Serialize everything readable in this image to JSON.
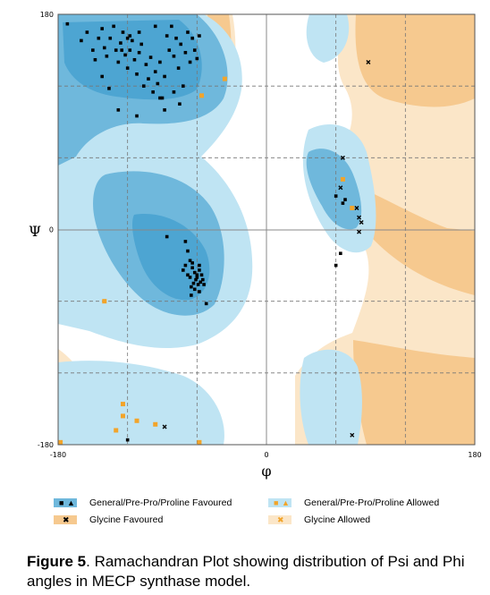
{
  "chart_data": {
    "type": "scatter",
    "title": "",
    "xlabel": "φ",
    "ylabel": "Ψ",
    "xlim": [
      -180,
      180
    ],
    "ylim": [
      -180,
      180
    ],
    "x_ticks": [
      "-180",
      "0",
      "180"
    ],
    "y_ticks": [
      "180",
      "0",
      "-180"
    ],
    "grid": true,
    "grid_style": "dashed, every 60 degrees",
    "colors": {
      "general_favoured": "#6fb8dc",
      "general_allowed": "#bfe4f3",
      "glycine_favoured": "#f6c98f",
      "glycine_allowed": "#fbe6c8",
      "marker_general": "#000000",
      "marker_allowed": "#f2a42a"
    },
    "series": [
      {
        "name": "General/Pre-Pro/Proline Favoured",
        "marker": "square",
        "points": [
          [
            -172,
            172
          ],
          [
            -160,
            158
          ],
          [
            -155,
            165
          ],
          [
            -150,
            150
          ],
          [
            -148,
            142
          ],
          [
            -145,
            160
          ],
          [
            -142,
            168
          ],
          [
            -140,
            152
          ],
          [
            -138,
            145
          ],
          [
            -135,
            160
          ],
          [
            -132,
            170
          ],
          [
            -130,
            150
          ],
          [
            -128,
            140
          ],
          [
            -126,
            156
          ],
          [
            -124,
            165
          ],
          [
            -122,
            146
          ],
          [
            -120,
            135
          ],
          [
            -118,
            150
          ],
          [
            -116,
            158
          ],
          [
            -114,
            142
          ],
          [
            -112,
            130
          ],
          [
            -110,
            148
          ],
          [
            -108,
            155
          ],
          [
            -106,
            120
          ],
          [
            -104,
            138
          ],
          [
            -102,
            126
          ],
          [
            -100,
            144
          ],
          [
            -98,
            115
          ],
          [
            -96,
            132
          ],
          [
            -94,
            122
          ],
          [
            -92,
            140
          ],
          [
            -90,
            110
          ],
          [
            -88,
            128
          ],
          [
            -86,
            162
          ],
          [
            -84,
            150
          ],
          [
            -82,
            170
          ],
          [
            -80,
            145
          ],
          [
            -78,
            160
          ],
          [
            -76,
            135
          ],
          [
            -74,
            155
          ],
          [
            -72,
            120
          ],
          [
            -70,
            148
          ],
          [
            -68,
            165
          ],
          [
            -66,
            140
          ],
          [
            -64,
            160
          ],
          [
            -62,
            150
          ],
          [
            -60,
            143
          ],
          [
            -58,
            162
          ],
          [
            -128,
            100
          ],
          [
            -142,
            128
          ],
          [
            -136,
            118
          ],
          [
            -118,
            162
          ],
          [
            -96,
            170
          ],
          [
            -120,
            160
          ],
          [
            -110,
            165
          ],
          [
            -125,
            150
          ],
          [
            -88,
            100
          ],
          [
            -80,
            115
          ],
          [
            -92,
            110
          ],
          [
            -112,
            95
          ],
          [
            -75,
            105
          ],
          [
            -86,
            -6
          ],
          [
            -70,
            -10
          ],
          [
            -68,
            -18
          ],
          [
            -66,
            -26
          ],
          [
            -64,
            -32
          ],
          [
            -62,
            -36
          ],
          [
            -60,
            -38
          ],
          [
            -58,
            -34
          ],
          [
            -60,
            -40
          ],
          [
            -63,
            -45
          ],
          [
            -65,
            -48
          ],
          [
            -61,
            -42
          ],
          [
            -57,
            -44
          ],
          [
            -59,
            -46
          ],
          [
            -62,
            -50
          ],
          [
            -58,
            -52
          ],
          [
            -55,
            -42
          ],
          [
            -66,
            -40
          ],
          [
            -68,
            -38
          ],
          [
            -72,
            -34
          ],
          [
            -70,
            -30
          ],
          [
            -64,
            -28
          ],
          [
            -56,
            -38
          ],
          [
            -54,
            -46
          ],
          [
            -52,
            -62
          ],
          [
            -65,
            -55
          ],
          [
            -58,
            -30
          ],
          [
            -120,
            -176
          ],
          [
            60,
            -30
          ],
          [
            64,
            -20
          ],
          [
            60,
            28
          ],
          [
            66,
            22
          ],
          [
            68,
            25
          ]
        ]
      },
      {
        "name": "Glycine Favoured",
        "marker": "cross",
        "points": [
          [
            88,
            140
          ],
          [
            66,
            60
          ],
          [
            64,
            35
          ],
          [
            78,
            18
          ],
          [
            80,
            10
          ],
          [
            82,
            6
          ],
          [
            80,
            -2
          ],
          [
            74,
            -172
          ],
          [
            -88,
            -165
          ]
        ]
      },
      {
        "name": "General/Pre-Pro/Proline Allowed",
        "marker": "square",
        "points": [
          [
            -140,
            -60
          ],
          [
            -56,
            112
          ],
          [
            -36,
            126
          ],
          [
            -124,
            -146
          ],
          [
            -124,
            -156
          ],
          [
            -112,
            -160
          ],
          [
            -96,
            -163
          ],
          [
            -130,
            -168
          ],
          [
            -58,
            -178
          ],
          [
            -178,
            -178
          ],
          [
            66,
            42
          ],
          [
            74,
            18
          ]
        ]
      },
      {
        "name": "Glycine Allowed",
        "marker": "cross",
        "points": []
      }
    ]
  },
  "legend": {
    "items": [
      {
        "label": "General/Pre-Pro/Proline Favoured"
      },
      {
        "label": "General/Pre-Pro/Proline Allowed"
      },
      {
        "label": "Glycine Favoured"
      },
      {
        "label": "Glycine Allowed"
      }
    ]
  },
  "caption": {
    "label": "Figure 5",
    "text": ". Ramachandran Plot showing distribution of Psi and Phi angles in MECP synthase model."
  }
}
